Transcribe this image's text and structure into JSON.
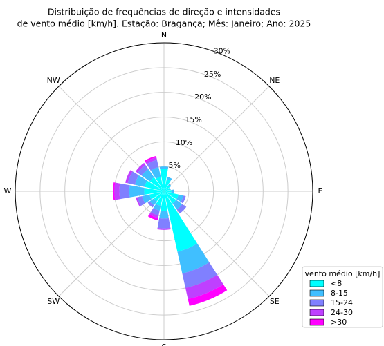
{
  "chart_data": {
    "type": "windrose",
    "title": [
      "Distribuição de frequências de direção e intensidades",
      "de vento médio [km/h]. Estação: Bragança; Mês: Janeiro; Ano: 2025"
    ],
    "categories": [
      "N",
      null,
      "NE",
      null,
      "E",
      null,
      "SE",
      null,
      "S",
      null,
      "SW",
      null,
      "W",
      null,
      "NW",
      null
    ],
    "ylim": [
      0,
      30
    ],
    "yticks": [
      {
        "value": 5,
        "label": "5%"
      },
      {
        "value": 10,
        "label": "10%"
      },
      {
        "value": 15,
        "label": "15%"
      },
      {
        "value": 20,
        "label": "20%"
      },
      {
        "value": 25,
        "label": "25%"
      },
      {
        "value": 30,
        "label": "30%"
      }
    ],
    "grid": true,
    "legend_title": "vento médio [km/h]",
    "legend_position": "lower right",
    "series": [
      {
        "name": "<8",
        "color": "#00ffff",
        "values": [
          4.5,
          2.5,
          1.5,
          1.2,
          1.5,
          3,
          3,
          12.5,
          4,
          3,
          2.5,
          3,
          4,
          4,
          3.5,
          3
        ]
      },
      {
        "name": "8-15",
        "color": "#40bfff",
        "values": [
          0.5,
          0.5,
          0.3,
          0.2,
          0.5,
          1,
          1.5,
          4.5,
          1.5,
          1,
          1,
          1.5,
          3,
          2,
          2,
          2
        ]
      },
      {
        "name": "15-24",
        "color": "#8080ff",
        "values": [
          0,
          0,
          0,
          0,
          0,
          0.5,
          1,
          3,
          2,
          1,
          0.5,
          1,
          2,
          1.5,
          1,
          1.5
        ]
      },
      {
        "name": "24-30",
        "color": "#bf40ff",
        "values": [
          0,
          0,
          0,
          0,
          0,
          0,
          0,
          2.3,
          0.3,
          0.5,
          0,
          0.3,
          1,
          0.5,
          0.5,
          0.5
        ]
      },
      {
        "name": ">30",
        "color": "#ff00ff",
        "values": [
          0,
          0,
          0,
          0,
          0,
          0,
          0,
          1.4,
          0,
          0.5,
          0,
          0,
          0.3,
          0,
          0,
          0.3
        ]
      }
    ]
  }
}
